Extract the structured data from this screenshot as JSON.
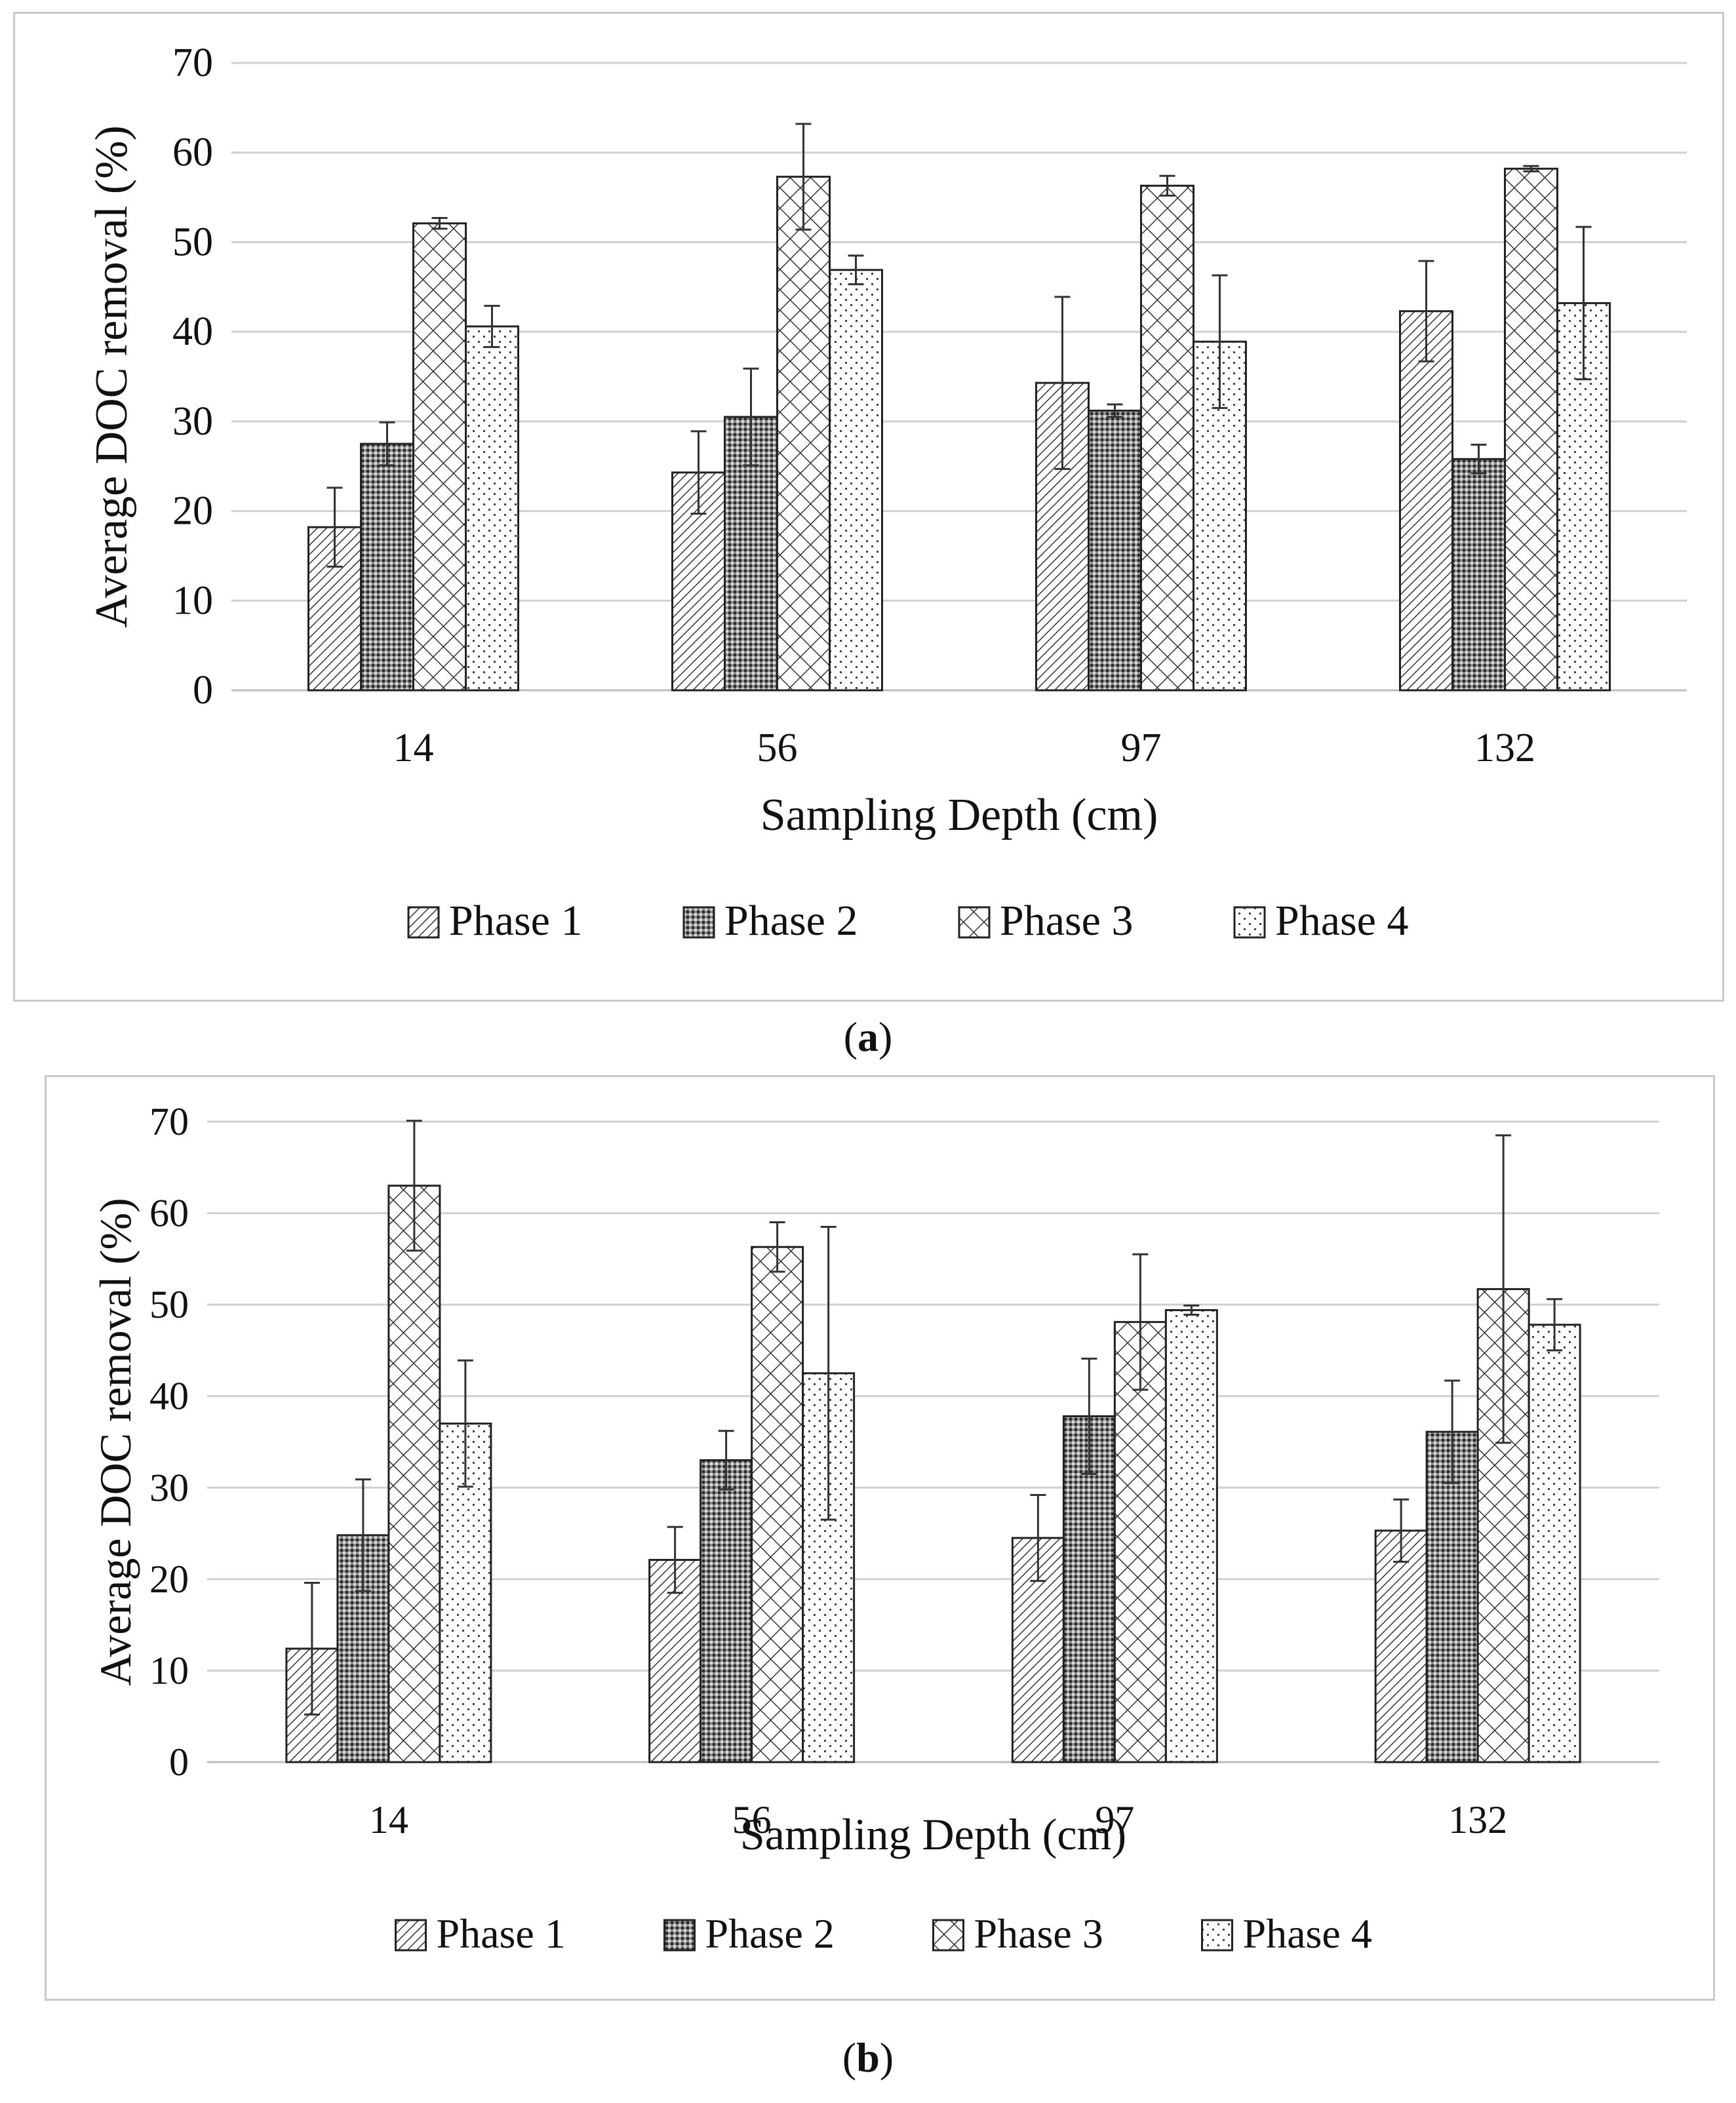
{
  "panels": [
    {
      "label": "a",
      "chart_data": {
        "type": "bar",
        "xlabel": "Sampling Depth (cm)",
        "ylabel": "Average DOC removal (%)",
        "categories": [
          "14",
          "56",
          "97",
          "132"
        ],
        "ylim": [
          0,
          70
        ],
        "yticks": [
          0,
          10,
          20,
          30,
          40,
          50,
          60,
          70
        ],
        "grid": true,
        "legend_position": "bottom",
        "series": [
          {
            "name": "Phase 1",
            "pattern": "diag",
            "values": [
              18.2,
              24.3,
              34.3,
              42.3
            ],
            "errors": [
              4.4,
              4.6,
              9.6,
              5.6
            ]
          },
          {
            "name": "Phase 2",
            "pattern": "dots",
            "values": [
              27.5,
              30.5,
              31.2,
              25.8
            ],
            "errors": [
              2.4,
              5.4,
              0.7,
              1.6
            ]
          },
          {
            "name": "Phase 3",
            "pattern": "cross",
            "values": [
              52.1,
              57.3,
              56.3,
              58.2
            ],
            "errors": [
              0.6,
              5.9,
              1.1,
              0.3
            ]
          },
          {
            "name": "Phase 4",
            "pattern": "sparse",
            "values": [
              40.6,
              46.9,
              38.9,
              43.2
            ],
            "errors": [
              2.3,
              1.6,
              7.4,
              8.5
            ]
          }
        ]
      }
    },
    {
      "label": "b",
      "chart_data": {
        "type": "bar",
        "xlabel": "Sampling Depth (cm)",
        "ylabel": "Average DOC removal (%)",
        "categories": [
          "14",
          "56",
          "97",
          "132"
        ],
        "ylim": [
          0,
          70
        ],
        "yticks": [
          0,
          10,
          20,
          30,
          40,
          50,
          60,
          70
        ],
        "grid": true,
        "legend_position": "bottom",
        "series": [
          {
            "name": "Phase 1",
            "pattern": "diag",
            "values": [
              12.4,
              22.1,
              24.5,
              25.3
            ],
            "errors": [
              7.2,
              3.6,
              4.7,
              3.4
            ]
          },
          {
            "name": "Phase 2",
            "pattern": "dots",
            "values": [
              24.8,
              33.0,
              37.8,
              36.1
            ],
            "errors": [
              6.1,
              3.2,
              6.3,
              5.6
            ]
          },
          {
            "name": "Phase 3",
            "pattern": "cross",
            "values": [
              63.0,
              56.3,
              48.1,
              51.7
            ],
            "errors": [
              7.1,
              2.7,
              7.4,
              16.8
            ]
          },
          {
            "name": "Phase 4",
            "pattern": "sparse",
            "values": [
              37.0,
              42.5,
              49.4,
              47.8
            ],
            "errors": [
              6.9,
              16.0,
              0.5,
              2.8
            ]
          }
        ]
      }
    }
  ]
}
